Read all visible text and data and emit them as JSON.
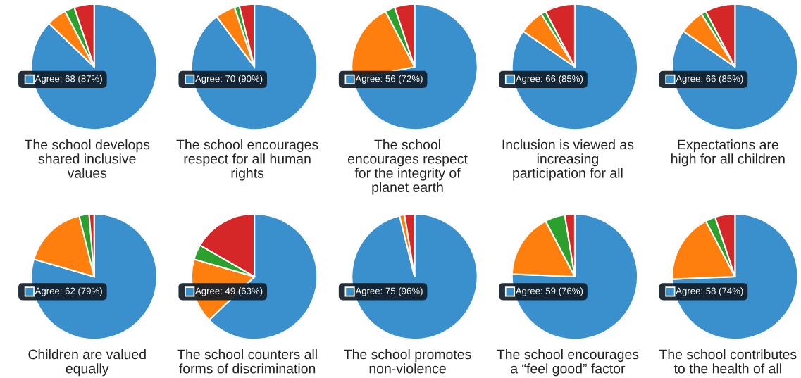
{
  "chart_data": [
    {
      "type": "pie",
      "title": "The school develops\nshared inclusive\nvalues",
      "categories": [
        "Agree",
        null,
        null,
        null
      ],
      "values": [
        68,
        4,
        2,
        4
      ],
      "colors": [
        "#3a8fcd",
        "#ff7f0e",
        "#2ca02c",
        "#d62728"
      ],
      "value_labels": [
        "68 (87%)",
        null,
        null,
        null
      ]
    },
    {
      "type": "pie",
      "title": "The school encourages\nrespect for all human\nrights",
      "categories": [
        "Agree",
        null,
        null,
        null
      ],
      "values": [
        70,
        4,
        1,
        3
      ],
      "colors": [
        "#3a8fcd",
        "#ff7f0e",
        "#2ca02c",
        "#d62728"
      ],
      "value_labels": [
        "70 (90%)",
        null,
        null,
        null
      ]
    },
    {
      "type": "pie",
      "title": "The school\nencourages respect\nfor the integrity of\nplanet earth",
      "categories": [
        "Agree",
        null,
        null,
        null
      ],
      "values": [
        56,
        16,
        2,
        4
      ],
      "colors": [
        "#3a8fcd",
        "#ff7f0e",
        "#2ca02c",
        "#d62728"
      ],
      "value_labels": [
        "56 (72%)",
        null,
        null,
        null
      ]
    },
    {
      "type": "pie",
      "title": "Inclusion is viewed as\nincreasing\nparticipation for all",
      "categories": [
        "Agree",
        null,
        null,
        null
      ],
      "values": [
        66,
        5,
        1,
        6
      ],
      "colors": [
        "#3a8fcd",
        "#ff7f0e",
        "#2ca02c",
        "#d62728"
      ],
      "value_labels": [
        "66 (85%)",
        null,
        null,
        null
      ]
    },
    {
      "type": "pie",
      "title": "Expectations are\nhigh for all children",
      "categories": [
        "Agree",
        null,
        null,
        null
      ],
      "values": [
        66,
        5,
        1,
        6
      ],
      "colors": [
        "#3a8fcd",
        "#ff7f0e",
        "#2ca02c",
        "#d62728"
      ],
      "value_labels": [
        "66 (85%)",
        null,
        null,
        null
      ]
    },
    {
      "type": "pie",
      "title": "Children are valued\nequally",
      "categories": [
        "Agree",
        null,
        null,
        null
      ],
      "values": [
        62,
        13,
        2,
        1
      ],
      "colors": [
        "#3a8fcd",
        "#ff7f0e",
        "#2ca02c",
        "#d62728"
      ],
      "value_labels": [
        "62 (79%)",
        null,
        null,
        null
      ]
    },
    {
      "type": "pie",
      "title": "The school counters all\nforms of discrimination",
      "categories": [
        "Agree",
        null,
        null,
        null
      ],
      "values": [
        49,
        13,
        3,
        13
      ],
      "colors": [
        "#3a8fcd",
        "#ff7f0e",
        "#2ca02c",
        "#d62728"
      ],
      "value_labels": [
        "49 (63%)",
        null,
        null,
        null
      ]
    },
    {
      "type": "pie",
      "title": "The school promotes\nnon-violence",
      "categories": [
        "Agree",
        null,
        null,
        null
      ],
      "values": [
        75,
        1,
        0,
        2
      ],
      "colors": [
        "#3a8fcd",
        "#ff7f0e",
        "#2ca02c",
        "#d62728"
      ],
      "value_labels": [
        "75 (96%)",
        null,
        null,
        null
      ]
    },
    {
      "type": "pie",
      "title": "The school encourages\na “feel good” factor",
      "categories": [
        "Agree",
        null,
        null,
        null
      ],
      "values": [
        59,
        13,
        4,
        2
      ],
      "colors": [
        "#3a8fcd",
        "#ff7f0e",
        "#2ca02c",
        "#d62728"
      ],
      "value_labels": [
        "59 (76%)",
        null,
        null,
        null
      ]
    },
    {
      "type": "pie",
      "title": "The school contributes\nto the health of all",
      "categories": [
        "Agree",
        null,
        null,
        null
      ],
      "values": [
        58,
        14,
        2,
        4
      ],
      "colors": [
        "#3a8fcd",
        "#ff7f0e",
        "#2ca02c",
        "#d62728"
      ],
      "value_labels": [
        "58 (74%)",
        null,
        null,
        null
      ]
    }
  ]
}
